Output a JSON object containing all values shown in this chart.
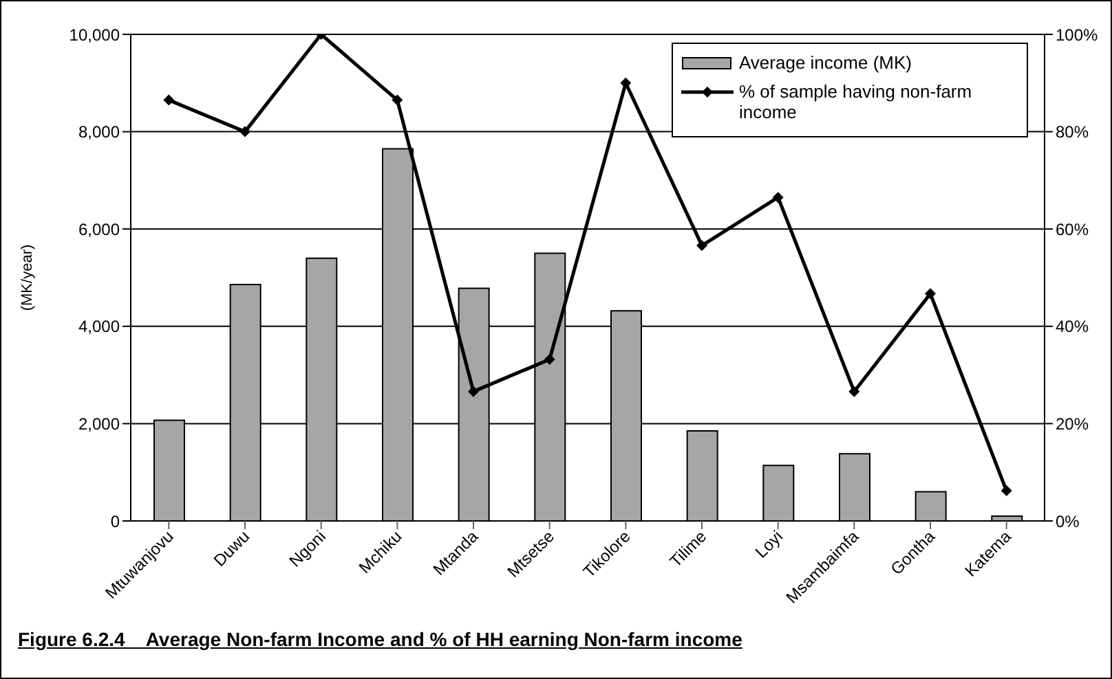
{
  "chart_data": {
    "type": "bar",
    "title": "Figure 6.2.4    Average Non-farm Income and % of HH earning Non-farm income",
    "ylabel": "(MK/year)",
    "categories": [
      "Mtuwanjovu",
      "Duwu",
      "Ngoni",
      "Mchiku",
      "Mtanda",
      "Mtsetse",
      "Tikolore",
      "Tilime",
      "Loyi",
      "Msambaimfa",
      "Gontha",
      "Katema"
    ],
    "series": [
      {
        "name": "Average income (MK)",
        "color": "#a6a6a6",
        "values": [
          2070,
          4860,
          5400,
          7650,
          4780,
          5500,
          4320,
          1850,
          1140,
          1380,
          600,
          100
        ]
      },
      {
        "name": "% of sample having non-farm income",
        "type": "line",
        "axis": "y2",
        "color": "#000000",
        "values": [
          86.5,
          80,
          100,
          86.5,
          26.6,
          33.2,
          90,
          56.6,
          66.5,
          26.6,
          46.7,
          6.2
        ]
      }
    ],
    "ylim": [
      0,
      10000
    ],
    "yticks": [
      {
        "value": 0,
        "label": "0"
      },
      {
        "value": 2000,
        "label": "2,000"
      },
      {
        "value": 4000,
        "label": "4,000"
      },
      {
        "value": 6000,
        "label": "6,000"
      },
      {
        "value": 8000,
        "label": "8,000"
      },
      {
        "value": 10000,
        "label": "10,000"
      }
    ],
    "y2lim": [
      0,
      100
    ],
    "y2ticks": [
      {
        "value": 0,
        "label": "0%"
      },
      {
        "value": 20,
        "label": "20%"
      },
      {
        "value": 40,
        "label": "40%"
      },
      {
        "value": 60,
        "label": "60%"
      },
      {
        "value": 80,
        "label": "80%"
      },
      {
        "value": 100,
        "label": "100%"
      }
    ],
    "grid": "y",
    "legend": "top right",
    "marker": "diamond",
    "line_style": "solid"
  }
}
